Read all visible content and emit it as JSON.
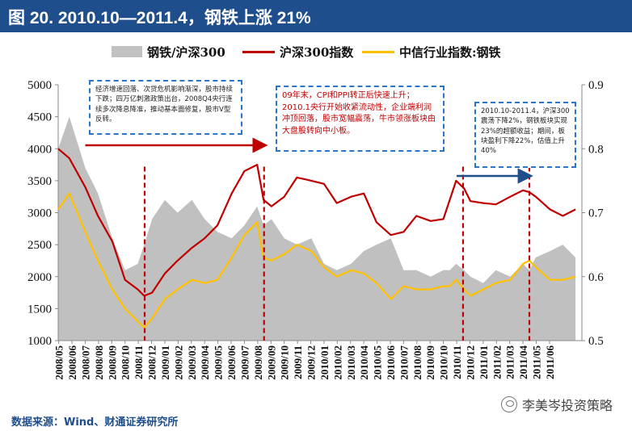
{
  "header": {
    "title": "图 20. 2010.10—2011.4，钢铁上涨 21%",
    "bg_color": "#1f4e8c"
  },
  "legend": {
    "items": [
      {
        "label": "钢铁/沪深300",
        "kind": "area",
        "color": "#c0c0c0"
      },
      {
        "label": "沪深300指数",
        "kind": "line",
        "color": "#c00000"
      },
      {
        "label": "中信行业指数:钢铁",
        "kind": "line",
        "color": "#ffc000"
      }
    ]
  },
  "annotations": [
    {
      "text": "经济增速回落、次贷危机影响渐深，股市持续下跌；四万亿刺激政策出台，2008Q4央行连续多次降息降准，推动基本面修复，股市V型反转。"
    },
    {
      "text": "09年末，CPI和PPI转正后快速上升；2010.1央行开始收紧流动性，企业端利润冲顶回落，股市宽幅震荡，牛市领涨板块由大盘股转向中小板。"
    },
    {
      "text": "2010.10-2011.4，沪深300震荡下降2%，钢铁板块实现23%的超额收益；期间，板块盈利下降22%，估值上升40%"
    }
  ],
  "footer": {
    "source": "数据来源：Wind、财通证券研究所",
    "watermark": "李美岑投资策略"
  },
  "chart_data": {
    "type": "line",
    "title": "图 20. 2010.10—2011.4，钢铁上涨 21%",
    "x_ticks": [
      "2008/05",
      "2008/06",
      "2008/07",
      "2008/08",
      "2008/09",
      "2008/10",
      "2008/11",
      "2008/12",
      "2009/01",
      "2009/02",
      "2009/03",
      "2009/04",
      "2009/05",
      "2009/06",
      "2009/07",
      "2009/08",
      "2009/09",
      "2009/10",
      "2009/11",
      "2009/12",
      "2010/01",
      "2010/02",
      "2010/03",
      "2010/04",
      "2010/05",
      "2010/06",
      "2010/07",
      "2010/08",
      "2010/09",
      "2010/10",
      "2010/11",
      "2010/12",
      "2011/01",
      "2011/02",
      "2011/03",
      "2011/04",
      "2011/05",
      "2011/06"
    ],
    "left_axis": {
      "ticks": [
        "1000",
        "1500",
        "2000",
        "2500",
        "3000",
        "3500",
        "4000",
        "4500",
        "5000"
      ],
      "range": [
        1000,
        5000
      ]
    },
    "right_axis": {
      "ticks": [
        "0.5",
        "0.6",
        "0.7",
        "0.8",
        "0.9"
      ],
      "range": [
        0.5,
        0.9
      ]
    },
    "x": [
      2008.33,
      2008.4,
      2008.5,
      2008.58,
      2008.67,
      2008.75,
      2008.83,
      2008.87,
      2008.92,
      2009.0,
      2009.08,
      2009.17,
      2009.25,
      2009.33,
      2009.42,
      2009.5,
      2009.58,
      2009.62,
      2009.67,
      2009.75,
      2009.83,
      2009.92,
      2010.0,
      2010.08,
      2010.17,
      2010.25,
      2010.33,
      2010.42,
      2010.5,
      2010.58,
      2010.67,
      2010.75,
      2010.79,
      2010.83,
      2010.88,
      2010.92,
      2011.0,
      2011.08,
      2011.17,
      2011.25,
      2011.29,
      2011.33,
      2011.42,
      2011.5,
      2011.58
    ],
    "series": [
      {
        "name": "钢铁/沪深300",
        "axis": "right",
        "kind": "area",
        "color": "#c0c0c0",
        "values": [
          0.8,
          0.85,
          0.77,
          0.73,
          0.66,
          0.61,
          0.62,
          0.65,
          0.69,
          0.72,
          0.7,
          0.72,
          0.69,
          0.67,
          0.66,
          0.68,
          0.71,
          0.68,
          0.69,
          0.66,
          0.65,
          0.66,
          0.62,
          0.61,
          0.62,
          0.64,
          0.65,
          0.66,
          0.61,
          0.61,
          0.6,
          0.61,
          0.61,
          0.62,
          0.61,
          0.6,
          0.59,
          0.61,
          0.6,
          0.62,
          0.61,
          0.63,
          0.64,
          0.65,
          0.63
        ]
      },
      {
        "name": "沪深300指数",
        "axis": "left",
        "kind": "line",
        "color": "#c00000",
        "values": [
          4000,
          3850,
          3400,
          2950,
          2550,
          1950,
          1800,
          1700,
          1750,
          2050,
          2250,
          2450,
          2600,
          2800,
          3300,
          3650,
          3750,
          3200,
          3100,
          3250,
          3550,
          3500,
          3450,
          3150,
          3250,
          3300,
          2850,
          2650,
          2700,
          2950,
          2870,
          2900,
          3200,
          3500,
          3380,
          3180,
          3150,
          3130,
          3250,
          3350,
          3320,
          3250,
          3050,
          2950,
          3050
        ]
      },
      {
        "name": "中信行业指数:钢铁",
        "axis": "left",
        "kind": "line",
        "color": "#ffc000",
        "values": [
          3050,
          3300,
          2700,
          2250,
          1800,
          1500,
          1300,
          1200,
          1350,
          1650,
          1800,
          1950,
          1900,
          1950,
          2300,
          2650,
          2850,
          2300,
          2250,
          2350,
          2500,
          2400,
          2150,
          2000,
          2100,
          2050,
          1900,
          1650,
          1850,
          1800,
          1800,
          1850,
          1850,
          1950,
          1800,
          1700,
          1800,
          1900,
          1950,
          2200,
          2250,
          2150,
          1950,
          1950,
          2000
        ]
      }
    ],
    "event_markers": [
      "2008/11",
      "2009/08",
      "2010/11",
      "2011/04"
    ],
    "arrows": [
      {
        "from": "2008/07",
        "to": "2009/08",
        "color": "#c00000"
      },
      {
        "from": "2010/11",
        "to": "2011/04",
        "color": "#1f4e8c"
      }
    ],
    "grid": false
  }
}
